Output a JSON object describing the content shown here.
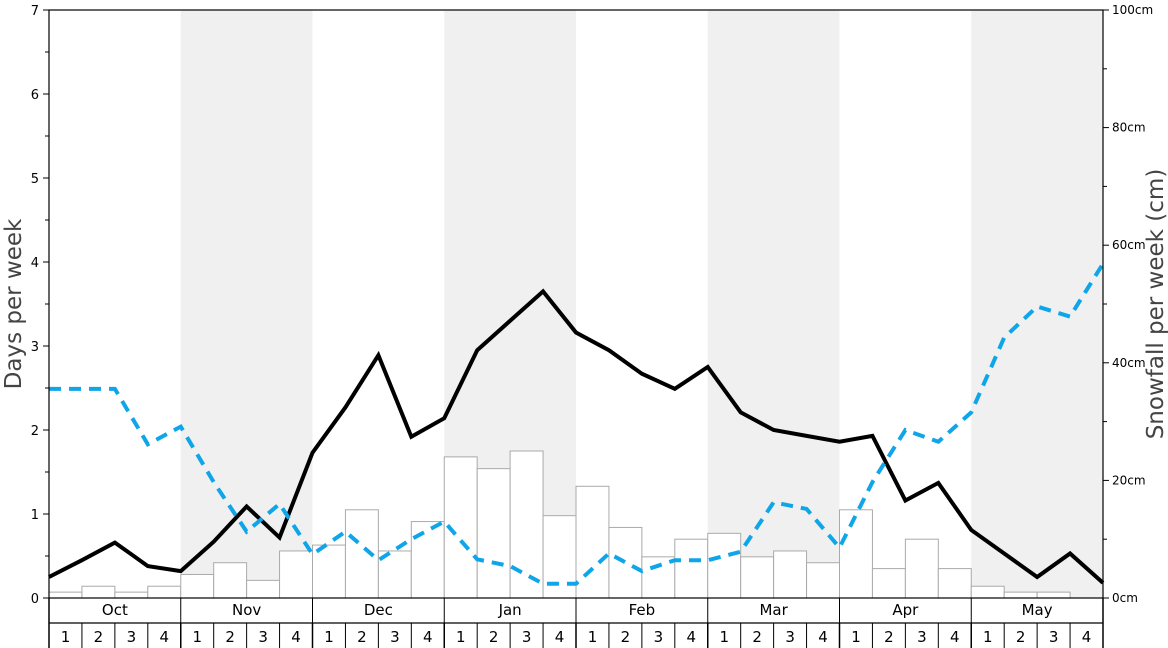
{
  "chart_data": {
    "type": "bar",
    "ylabel": "Days per week",
    "y2label": "Snowfall per week (cm)",
    "ylim": [
      0,
      7
    ],
    "y2lim": [
      0,
      100
    ],
    "y_ticks": [
      "0",
      "1",
      "2",
      "3",
      "4",
      "5",
      "6",
      "7"
    ],
    "y2_ticks": [
      "0cm",
      "20cm",
      "40cm",
      "60cm",
      "80cm",
      "100cm"
    ],
    "months": [
      "Oct",
      "Nov",
      "Dec",
      "Jan",
      "Feb",
      "Mar",
      "Apr",
      "May"
    ],
    "weeks": [
      "1",
      "2",
      "3",
      "4"
    ],
    "month_shading": [
      false,
      true,
      false,
      true,
      false,
      true,
      false,
      true
    ],
    "series": [
      {
        "kind": "bar",
        "axis": "right",
        "color": "#ffffff",
        "border": "#aaaaaa",
        "values": [
          1.0,
          2.0,
          1.0,
          2.0,
          4.0,
          6.0,
          3.0,
          8.0,
          9.0,
          15.0,
          8.0,
          13.0,
          24.0,
          22.0,
          25.0,
          14.0,
          19.0,
          12.0,
          7.0,
          10.0,
          11.0,
          7.0,
          8.0,
          6.0,
          15.0,
          5.0,
          10.0,
          5.0,
          2.0,
          1.0,
          1.0,
          0.0
        ]
      },
      {
        "kind": "line",
        "axis": "left",
        "style": "solid",
        "color": "#000000",
        "values": [
          0.25,
          0.45,
          0.66,
          0.38,
          0.32,
          0.67,
          1.09,
          0.72,
          1.73,
          2.27,
          2.89,
          1.92,
          2.14,
          2.95,
          3.3,
          3.65,
          3.16,
          2.95,
          2.67,
          2.49,
          2.75,
          2.21,
          2.0,
          1.93,
          1.86,
          1.93,
          1.16,
          1.37,
          0.81,
          0.53,
          0.25,
          0.53,
          0.18
        ]
      },
      {
        "kind": "line",
        "axis": "left",
        "style": "dashed",
        "color": "#0ea5e9",
        "values": [
          2.49,
          2.49,
          2.49,
          1.83,
          2.04,
          1.38,
          0.79,
          1.12,
          0.52,
          0.79,
          0.45,
          0.7,
          0.91,
          0.46,
          0.38,
          0.17,
          0.17,
          0.53,
          0.32,
          0.45,
          0.45,
          0.55,
          1.14,
          1.06,
          0.6,
          1.38,
          2.0,
          1.86,
          2.21,
          3.1,
          3.47,
          3.35,
          3.98
        ]
      }
    ]
  }
}
